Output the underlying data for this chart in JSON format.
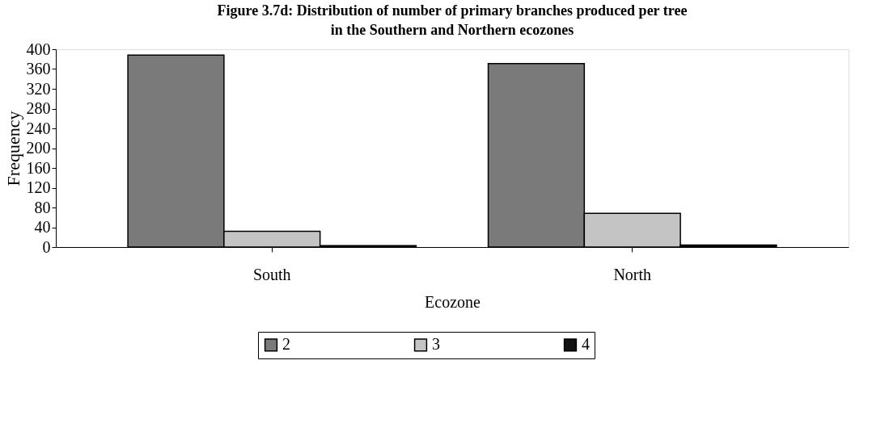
{
  "chart_data": {
    "type": "bar",
    "title": "Figure 3.7d: Distribution of number of primary branches produced per tree in the Southern and Northern ecozones",
    "xlabel": "Ecozone",
    "ylabel": "Frequency",
    "categories": [
      "South",
      "North"
    ],
    "series": [
      {
        "name": "2",
        "color": "#7a7a7a",
        "values": [
          388,
          371
        ]
      },
      {
        "name": "3",
        "color": "#c4c4c4",
        "values": [
          32,
          68
        ]
      },
      {
        "name": "4",
        "color": "#111111",
        "values": [
          3,
          4
        ]
      }
    ],
    "ylim": [
      0,
      400
    ],
    "yticks": [
      0,
      40,
      80,
      120,
      160,
      200,
      240,
      280,
      320,
      360,
      400
    ],
    "grid": false,
    "legend": "bottom"
  }
}
